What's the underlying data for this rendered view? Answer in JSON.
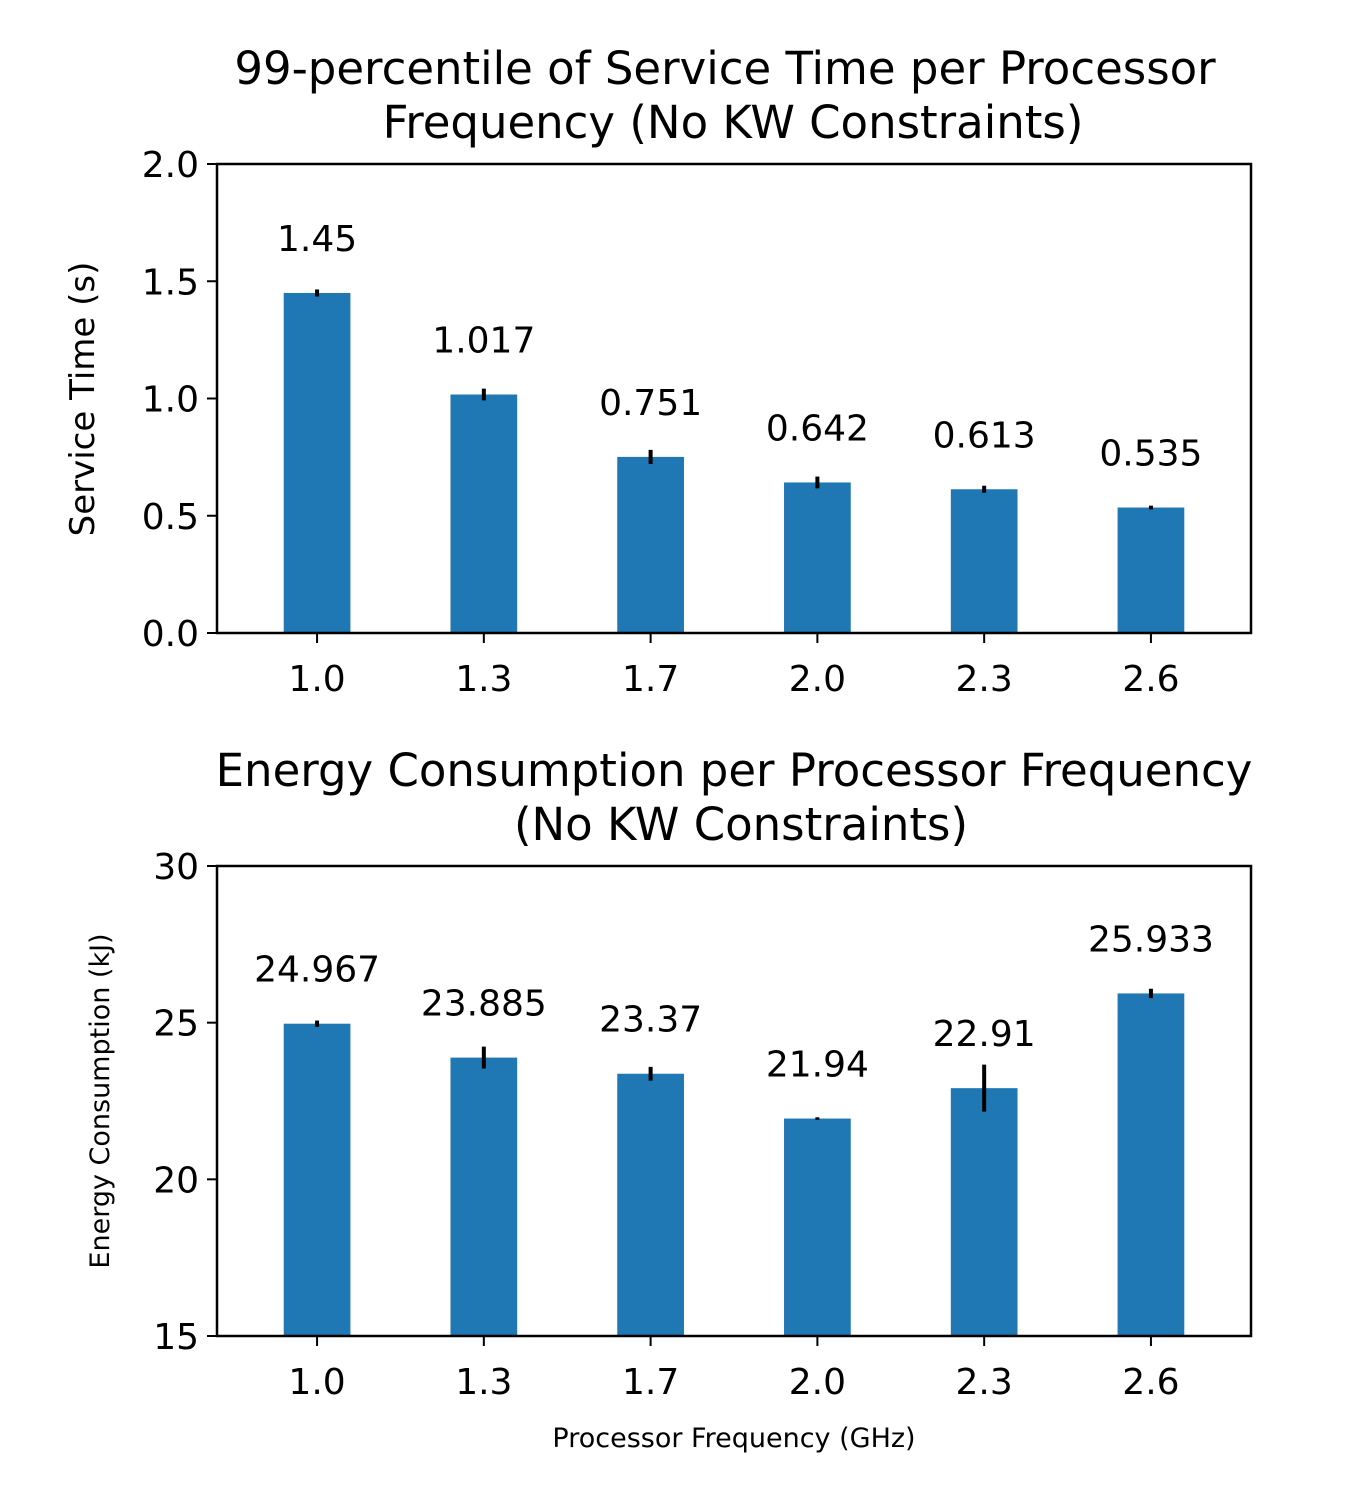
{
  "colors": {
    "bar": "#1f77b4",
    "error_bar": "#000000",
    "axes": "#000000"
  },
  "chart_data": [
    {
      "type": "bar",
      "title_lines": [
        "99-percentile of Service Time per Processor",
        "Frequency (No KW Constraints)"
      ],
      "xlabel": "",
      "ylabel": "Service Time (s)",
      "categories": [
        "1.0",
        "1.3",
        "1.7",
        "2.0",
        "2.3",
        "2.6"
      ],
      "values": [
        1.45,
        1.017,
        0.751,
        0.642,
        0.613,
        0.535
      ],
      "value_labels": [
        "1.45",
        "1.017",
        "0.751",
        "0.642",
        "0.613",
        "0.535"
      ],
      "errors": [
        0.015,
        0.025,
        0.03,
        0.025,
        0.015,
        0.008
      ],
      "ylim": [
        0.0,
        2.0
      ],
      "yticks": [
        0.0,
        0.5,
        1.0,
        1.5,
        2.0
      ],
      "ytick_labels": [
        "0.0",
        "0.5",
        "1.0",
        "1.5",
        "2.0"
      ],
      "grid": false,
      "legend": "none"
    },
    {
      "type": "bar",
      "title_lines": [
        "Energy Consumption per Processor Frequency",
        "(No KW Constraints)"
      ],
      "xlabel": "Processor Frequency (GHz)",
      "ylabel": "Energy Consumption (kJ)",
      "categories": [
        "1.0",
        "1.3",
        "1.7",
        "2.0",
        "2.3",
        "2.6"
      ],
      "values": [
        24.967,
        23.885,
        23.37,
        21.94,
        22.91,
        25.933
      ],
      "value_labels": [
        "24.967",
        "23.885",
        "23.37",
        "21.94",
        "22.91",
        "25.933"
      ],
      "errors": [
        0.1,
        0.35,
        0.22,
        0.04,
        0.75,
        0.15
      ],
      "ylim": [
        15,
        30
      ],
      "yticks": [
        15,
        20,
        25,
        30
      ],
      "ytick_labels": [
        "15",
        "20",
        "25",
        "30"
      ],
      "grid": false,
      "legend": "none"
    }
  ]
}
